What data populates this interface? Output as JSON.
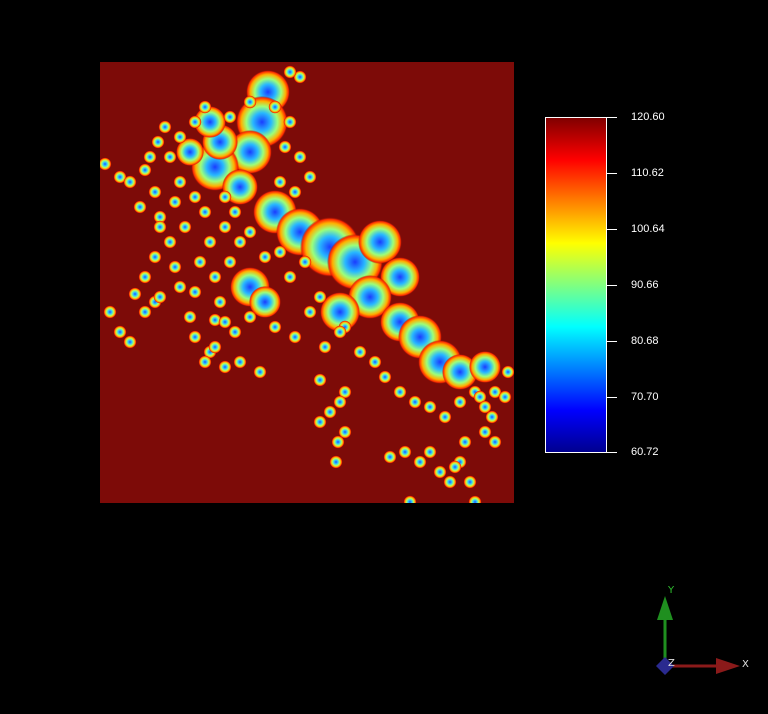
{
  "colorbar": {
    "ticks": [
      "120.60",
      "110.62",
      "100.64",
      "90.66",
      "80.68",
      "70.70",
      "60.72"
    ],
    "colormap": [
      "#00008f",
      "#0000ff",
      "#0080ff",
      "#00ffff",
      "#80ff80",
      "#ffff00",
      "#ff8000",
      "#ff0000",
      "#800000"
    ]
  },
  "heatmap": {
    "background_color": "#7d0b08"
  },
  "axes": {
    "x_label": "X",
    "y_label": "Y",
    "z_label": "Z",
    "x_color": "#8b1a1a",
    "y_color": "#1f8f1f",
    "z_color": "#2a2a8f"
  }
}
